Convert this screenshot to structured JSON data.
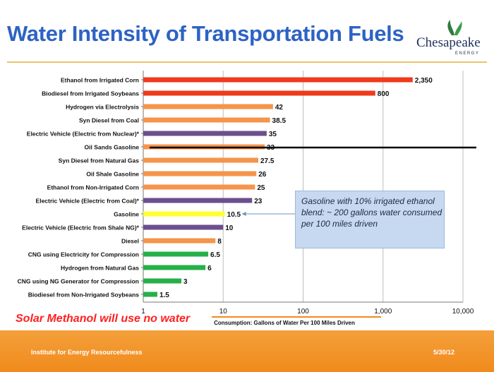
{
  "slide": {
    "title": "Water Intensity of Transportation Fuels",
    "logo_name": "Chesapeake",
    "logo_tagline": "ENERGY",
    "callout": "Gasoline with 10% irrigated ethanol blend:  ~ 200 gallons water consumed per 100 miles driven",
    "solar_note": "Solar Methanol will use no water",
    "footer_left": "Institute for Energy Resourcefulness",
    "footer_right": "5/30/12"
  },
  "colors": {
    "red": "#ef3a1c",
    "orange": "#f5944a",
    "purple": "#6b4f8e",
    "yellow": "#ffff33",
    "green": "#27b04a",
    "title": "#2d63c4",
    "accent_line": "#f08a1c"
  },
  "chart_data": {
    "type": "bar",
    "orientation": "horizontal",
    "xscale": "log",
    "xlim": [
      1,
      10000
    ],
    "xticks": [
      1,
      10,
      100,
      1000,
      10000
    ],
    "xtick_labels": [
      "1",
      "10",
      "100",
      "1,000",
      "10,000"
    ],
    "xlabel": "Consumption: Gallons of Water Per 100 Miles Driven",
    "grid": "vertical",
    "categories": [
      "Ethanol from Irrigated Corn",
      "Biodiesel from Irrigated Soybeans",
      "Hydrogen via Electrolysis",
      "Syn Diesel from Coal",
      "Electric Vehicle (Electric from Nuclear)*",
      "Oil Sands Gasoline",
      "Syn Diesel from Natural Gas",
      "Oil Shale Gasoline",
      "Ethanol from Non-Irrigated Corn",
      "Electric Vehicle (Electric from Coal)*",
      "Gasoline",
      "Electric Vehicle (Electric from Shale NG)*",
      "Diesel",
      "CNG using Electricity for Compression",
      "Hydrogen from Natural Gas",
      "CNG using NG Generator for Compression",
      "Biodiesel from Non-Irrigated Soybeans"
    ],
    "values": [
      2350,
      800,
      42,
      38.5,
      35,
      33,
      27.5,
      26,
      25,
      23,
      10.5,
      10,
      8,
      6.5,
      6,
      3,
      1.5
    ],
    "value_labels": [
      "2,350",
      "800",
      "42",
      "38.5",
      "35",
      "33",
      "27.5",
      "26",
      "25",
      "23",
      "10.5",
      "10",
      "8",
      "6.5",
      "6",
      "3",
      "1.5"
    ],
    "bar_colors": [
      "red",
      "red",
      "orange",
      "orange",
      "purple",
      "orange",
      "orange",
      "orange",
      "orange",
      "purple",
      "yellow",
      "purple",
      "orange",
      "green",
      "green",
      "green",
      "green"
    ]
  }
}
